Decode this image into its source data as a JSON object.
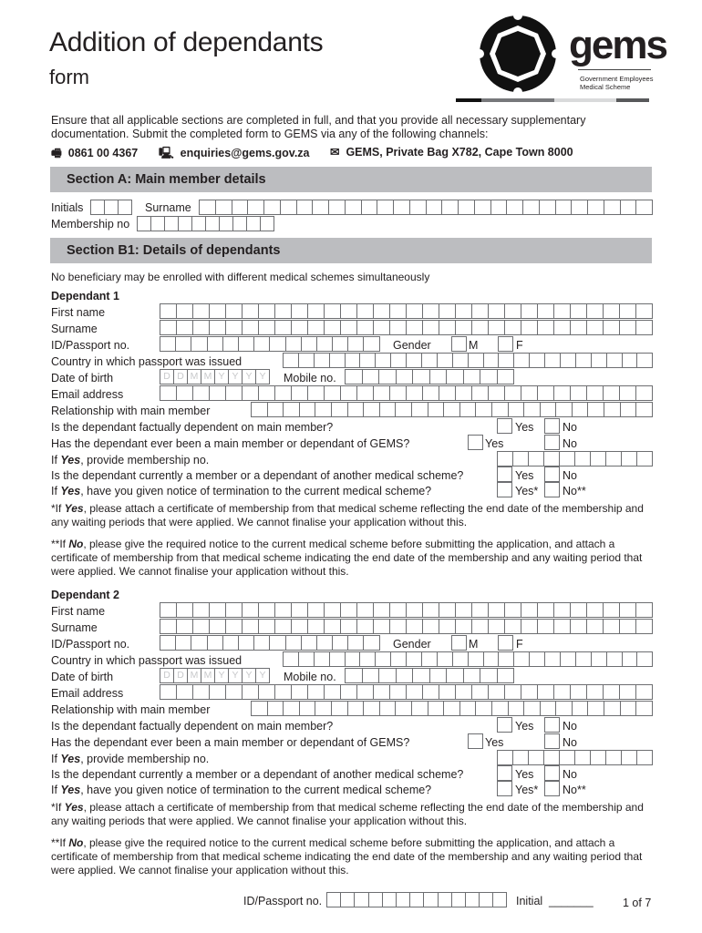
{
  "header": {
    "title_line1": "Addition of dependants",
    "title_line2": "form",
    "logo_text": "gems",
    "logo_sub1": "Government Employees",
    "logo_sub2": "Medical Scheme"
  },
  "intro": "Ensure that all applicable sections are completed in full, and that you provide all necessary supplementary documentation. Submit the completed form to GEMS via any of the following channels:",
  "contacts": [
    {
      "icon": "fax-icon",
      "text": "0861 00 4367"
    },
    {
      "icon": "computer-icon",
      "text": "enquiries@gems.gov.za"
    },
    {
      "icon": "envelope-icon",
      "text": "GEMS, Private Bag X782, Cape Town 8000"
    }
  ],
  "section_a": {
    "title": "Section A: Main member details",
    "initials": "Initials",
    "surname": "Surname",
    "membership_no": "Membership no"
  },
  "section_b1": {
    "title": "Section B1: Details of dependants",
    "note": "No beneficiary may be enrolled with different medical schemes simultaneously"
  },
  "dependants": [
    {
      "heading": "Dependant 1"
    },
    {
      "heading": "Dependant 2"
    }
  ],
  "labels": {
    "first_name": "First name",
    "surname": "Surname",
    "id_passport": "ID/Passport no.",
    "gender": "Gender",
    "male": "M",
    "female": "F",
    "country": "Country in which passport was issued",
    "dob": "Date of birth",
    "dob_placeholder": [
      "D",
      "D",
      "M",
      "M",
      "Y",
      "Y",
      "Y",
      "Y"
    ],
    "mobile": "Mobile no.",
    "email": "Email address",
    "relationship": "Relationship with main member",
    "q_dependent": "Is the dependant factually dependent on main member?",
    "q_ever_gems": "Has the dependant ever been a main member or dependant of GEMS?",
    "if_yes_prefix": "If ",
    "yes_bold": "Yes",
    "q_membership_suffix": ", provide membership no.",
    "q_other_scheme": "Is the dependant currently a member or a dependant of another medical scheme?",
    "q_termination_suffix": ", have you given notice of termination to the current medical scheme?",
    "yes": "Yes",
    "no": "No",
    "yes_star": "Yes*",
    "no_star": "No**",
    "note1_a": "*If ",
    "note1_bold": "Yes",
    "note1_b": ", please attach a certificate of membership from that medical scheme reflecting the end date of the membership and any waiting periods that were applied. We cannot finalise your application without this.",
    "note2_a": "**If ",
    "note2_bold": "No",
    "note2_b": ", please give the required notice to the current medical scheme before submitting the application, and attach a certificate of membership from that medical scheme indicating the end date of the membership and any waiting period that were applied. We cannot finalise your application without this."
  },
  "footer": {
    "id_passport": "ID/Passport no.",
    "initial": "Initial",
    "initial_line": "_______",
    "page": "1 of 7"
  }
}
